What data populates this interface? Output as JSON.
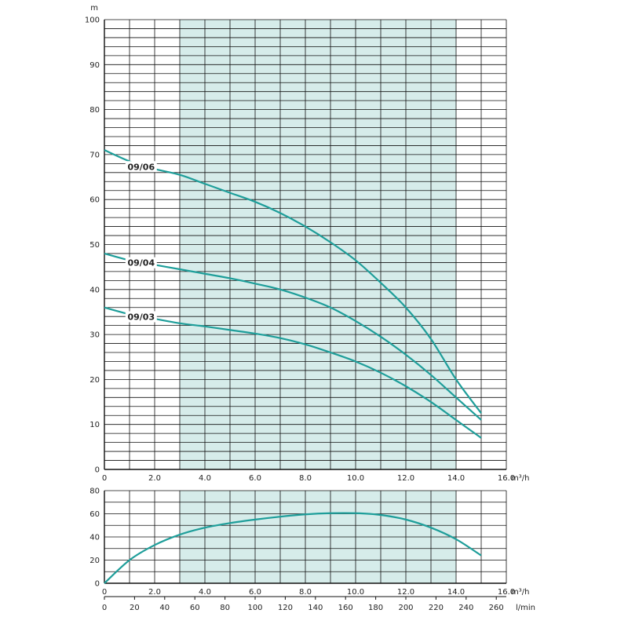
{
  "colors": {
    "curve": "#1e9e9a",
    "band": "#d6ecea",
    "grid": "#111111"
  },
  "chart_data": [
    {
      "type": "line",
      "ylabel": "m",
      "xlabel": "m³/h",
      "xlim": [
        0,
        16
      ],
      "ylim": [
        0,
        100
      ],
      "x_ticks": [
        "0",
        "2.0",
        "4.0",
        "6.0",
        "8.0",
        "10.0",
        "12.0",
        "14.0",
        "16.0"
      ],
      "y_ticks": [
        "0",
        "10",
        "20",
        "30",
        "40",
        "50",
        "60",
        "70",
        "80",
        "90",
        "100"
      ],
      "recommended_range": [
        3,
        14
      ],
      "series": [
        {
          "name": "09/06",
          "x": [
            0,
            1,
            2,
            3,
            4,
            5,
            6,
            7,
            8,
            9,
            10,
            11,
            12,
            13,
            14,
            15
          ],
          "y": [
            71,
            68.5,
            66.8,
            65.5,
            63.5,
            61.5,
            59.5,
            57,
            54,
            50.5,
            46.5,
            41.5,
            36,
            29,
            20,
            12.5
          ]
        },
        {
          "name": "09/04",
          "x": [
            0,
            1,
            2,
            3,
            4,
            5,
            6,
            7,
            8,
            9,
            10,
            11,
            12,
            13,
            14,
            15
          ],
          "y": [
            48,
            46.5,
            45.5,
            44.5,
            43.5,
            42.5,
            41.3,
            40,
            38.2,
            36,
            33,
            29.5,
            25.5,
            21,
            16,
            11
          ]
        },
        {
          "name": "09/03",
          "x": [
            0,
            1,
            2,
            3,
            4,
            5,
            6,
            7,
            8,
            9,
            10,
            11,
            12,
            13,
            14,
            15
          ],
          "y": [
            36,
            34.5,
            33.5,
            32.5,
            31.8,
            31,
            30.2,
            29.2,
            27.8,
            26,
            24,
            21.5,
            18.5,
            15,
            11,
            7
          ]
        }
      ]
    },
    {
      "type": "line",
      "xlabel": "m³/h",
      "x2label": "l/min",
      "xlim": [
        0,
        16
      ],
      "ylim": [
        0,
        80
      ],
      "x_ticks": [
        "0",
        "2.0",
        "4.0",
        "6.0",
        "8.0",
        "10.0",
        "12.0",
        "14.0",
        "16.0"
      ],
      "x2_ticks": [
        "0",
        "20",
        "40",
        "60",
        "80",
        "100",
        "120",
        "140",
        "160",
        "180",
        "200",
        "220",
        "240",
        "260"
      ],
      "y_ticks": [
        "0",
        "20",
        "40",
        "60",
        "80"
      ],
      "recommended_range": [
        3,
        14
      ],
      "series": [
        {
          "x": [
            0,
            1,
            2,
            3,
            4,
            5,
            6,
            7,
            8,
            9,
            10,
            11,
            12,
            13,
            14,
            15
          ],
          "y": [
            0,
            20,
            33,
            42,
            48,
            52,
            55,
            57.5,
            59.5,
            60.5,
            60.5,
            59,
            55,
            48,
            38,
            24
          ]
        }
      ]
    }
  ]
}
